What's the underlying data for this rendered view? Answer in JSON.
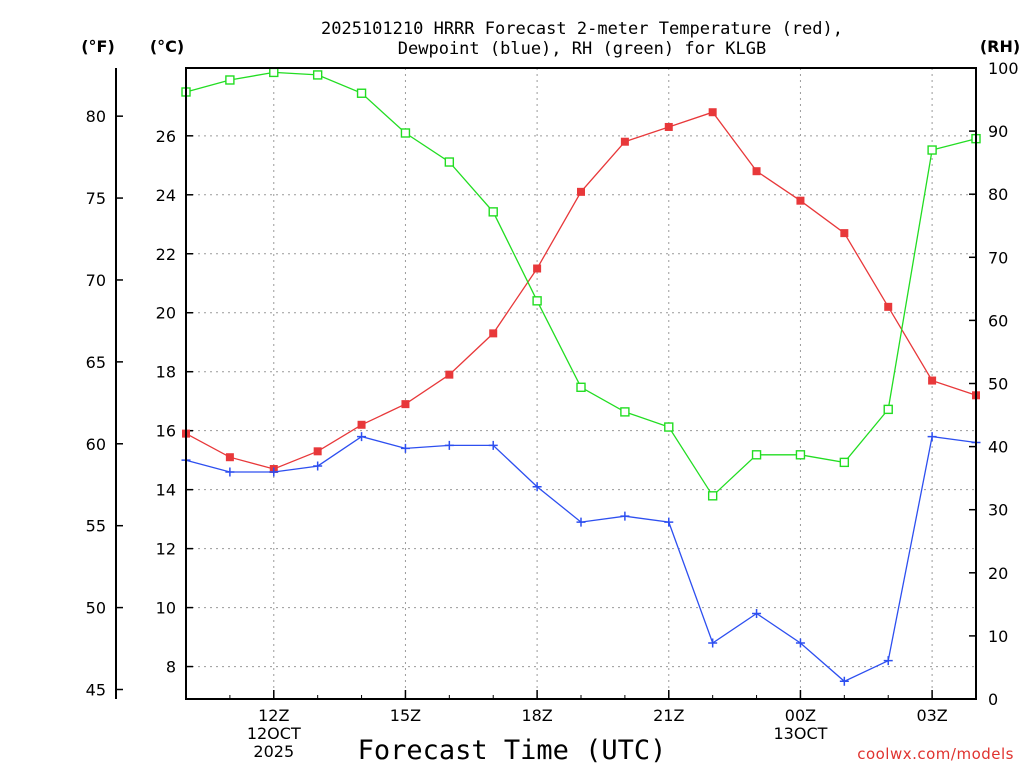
{
  "chart_data": {
    "type": "line",
    "title_line1": "2025101210 HRRR Forecast 2-meter Temperature (red),",
    "title_line2": "Dewpoint (blue), RH (green) for KLGB",
    "xlabel": "Forecast Time (UTC)",
    "unit_f": "(°F)",
    "unit_c": "(°C)",
    "unit_rh": "(RH)",
    "credit": "coolwx.com/models",
    "hours": [
      10,
      11,
      12,
      13,
      14,
      15,
      16,
      17,
      18,
      19,
      20,
      21,
      22,
      23,
      24,
      25,
      26,
      27,
      28
    ],
    "x_ticks": [
      {
        "hour": 12,
        "lines": [
          "12Z",
          "12OCT",
          "2025"
        ]
      },
      {
        "hour": 15,
        "lines": [
          "15Z"
        ]
      },
      {
        "hour": 18,
        "lines": [
          "18Z"
        ]
      },
      {
        "hour": 21,
        "lines": [
          "21Z"
        ]
      },
      {
        "hour": 24,
        "lines": [
          "00Z",
          "13OCT"
        ]
      },
      {
        "hour": 27,
        "lines": [
          "03Z"
        ]
      }
    ],
    "celsius_axis": {
      "ylim": [
        6.9,
        28.3
      ],
      "ticks": [
        8,
        10,
        12,
        14,
        16,
        18,
        20,
        22,
        24,
        26
      ]
    },
    "fahrenheit_ticks": [
      45,
      50,
      55,
      60,
      65,
      70,
      75,
      80
    ],
    "rh_axis": {
      "ylim": [
        0,
        100
      ],
      "ticks": [
        0,
        10,
        20,
        30,
        40,
        50,
        60,
        70,
        80,
        90,
        100
      ]
    },
    "series": [
      {
        "name": "Temperature",
        "axis": "celsius",
        "color": "#e8383a",
        "marker": "filled-square",
        "values": [
          15.9,
          15.1,
          14.7,
          15.3,
          16.2,
          16.9,
          17.9,
          19.3,
          21.5,
          24.1,
          25.8,
          26.3,
          26.8,
          24.8,
          23.8,
          22.7,
          20.2,
          17.7,
          17.2
        ]
      },
      {
        "name": "Dewpoint",
        "axis": "celsius",
        "color": "#2d4ff0",
        "marker": "plus",
        "values": [
          15.0,
          14.6,
          14.6,
          14.8,
          15.8,
          15.4,
          15.5,
          15.5,
          14.1,
          12.9,
          13.1,
          12.9,
          8.8,
          9.8,
          8.8,
          7.5,
          8.2,
          15.8,
          15.6
        ]
      },
      {
        "name": "RH",
        "axis": "rh",
        "color": "#22dd22",
        "marker": "open-square",
        "values": [
          96.2,
          98.1,
          99.3,
          98.9,
          96.0,
          89.7,
          85.1,
          77.2,
          63.1,
          49.4,
          45.5,
          43.1,
          32.2,
          38.7,
          38.7,
          37.5,
          45.9,
          87.0,
          88.8
        ]
      }
    ]
  }
}
